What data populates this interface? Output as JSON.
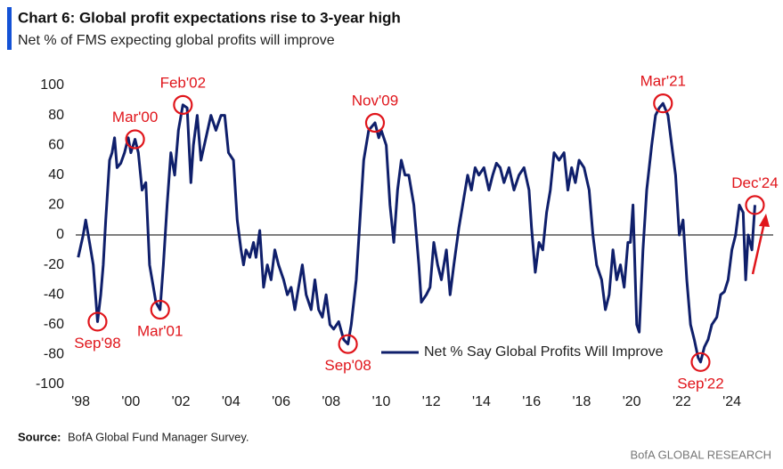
{
  "chart_data": {
    "type": "line",
    "title": "Chart 6: Global profit expectations rise to 3-year high",
    "subtitle": "Net % of FMS expecting global profits will improve",
    "source_label": "Source:",
    "source": "BofA Global Fund Manager Survey.",
    "brand": "BofA GLOBAL RESEARCH",
    "x": [
      1997.9,
      1998.1,
      1998.2,
      1998.35,
      1998.5,
      1998.67,
      1998.8,
      1998.9,
      1999.0,
      1999.15,
      1999.25,
      1999.35,
      1999.45,
      1999.6,
      1999.75,
      1999.9,
      2000.0,
      2000.17,
      2000.3,
      2000.45,
      2000.6,
      2000.75,
      2000.9,
      2001.0,
      2001.17,
      2001.3,
      2001.45,
      2001.6,
      2001.75,
      2001.9,
      2002.08,
      2002.25,
      2002.4,
      2002.5,
      2002.65,
      2002.8,
      2003.0,
      2003.2,
      2003.4,
      2003.6,
      2003.75,
      2003.9,
      2004.1,
      2004.25,
      2004.4,
      2004.5,
      2004.6,
      2004.75,
      2004.9,
      2005.0,
      2005.15,
      2005.3,
      2005.45,
      2005.6,
      2005.75,
      2005.9,
      2006.1,
      2006.25,
      2006.4,
      2006.55,
      2006.7,
      2006.85,
      2007.0,
      2007.2,
      2007.35,
      2007.5,
      2007.65,
      2007.8,
      2007.95,
      2008.1,
      2008.3,
      2008.5,
      2008.67,
      2008.8,
      2009.0,
      2009.15,
      2009.3,
      2009.5,
      2009.75,
      2009.9,
      2010.0,
      2010.2,
      2010.35,
      2010.5,
      2010.65,
      2010.8,
      2010.95,
      2011.1,
      2011.3,
      2011.5,
      2011.6,
      2011.8,
      2011.95,
      2012.1,
      2012.25,
      2012.4,
      2012.6,
      2012.75,
      2012.9,
      2013.1,
      2013.3,
      2013.45,
      2013.6,
      2013.75,
      2013.9,
      2014.1,
      2014.3,
      2014.45,
      2014.6,
      2014.75,
      2014.9,
      2015.1,
      2015.3,
      2015.5,
      2015.7,
      2015.9,
      2016.0,
      2016.15,
      2016.3,
      2016.45,
      2016.6,
      2016.75,
      2016.9,
      2017.1,
      2017.3,
      2017.45,
      2017.6,
      2017.75,
      2017.9,
      2018.1,
      2018.3,
      2018.45,
      2018.6,
      2018.8,
      2018.95,
      2019.1,
      2019.25,
      2019.4,
      2019.55,
      2019.7,
      2019.85,
      2019.95,
      2020.05,
      2020.2,
      2020.3,
      2020.45,
      2020.6,
      2020.8,
      2020.95,
      2021.1,
      2021.25,
      2021.45,
      2021.6,
      2021.75,
      2021.9,
      2022.05,
      2022.2,
      2022.35,
      2022.5,
      2022.65,
      2022.75,
      2022.9,
      2023.05,
      2023.2,
      2023.4,
      2023.55,
      2023.7,
      2023.85,
      2024.0,
      2024.15,
      2024.3,
      2024.45,
      2024.55,
      2024.65,
      2024.8,
      2024.92
    ],
    "series": [
      {
        "name": "Net % Say Global Profits Will Improve",
        "color": "#0f1f6b",
        "values": [
          -15,
          0,
          10,
          -5,
          -20,
          -58,
          -40,
          -20,
          10,
          50,
          55,
          65,
          45,
          48,
          55,
          65,
          55,
          64,
          55,
          30,
          35,
          -20,
          -35,
          -45,
          -50,
          -20,
          20,
          55,
          40,
          70,
          87,
          85,
          35,
          60,
          80,
          50,
          65,
          80,
          70,
          80,
          80,
          55,
          50,
          10,
          -10,
          -20,
          -10,
          -15,
          -5,
          -15,
          3,
          -35,
          -20,
          -30,
          -10,
          -20,
          -30,
          -40,
          -35,
          -50,
          -35,
          -20,
          -40,
          -50,
          -30,
          -50,
          -55,
          -40,
          -60,
          -63,
          -58,
          -70,
          -73,
          -60,
          -30,
          10,
          50,
          70,
          75,
          65,
          70,
          60,
          20,
          -5,
          30,
          50,
          40,
          40,
          20,
          -20,
          -45,
          -40,
          -35,
          -5,
          -20,
          -30,
          -10,
          -40,
          -20,
          5,
          25,
          40,
          30,
          45,
          40,
          45,
          30,
          40,
          48,
          45,
          35,
          45,
          30,
          40,
          45,
          30,
          5,
          -25,
          -5,
          -10,
          15,
          30,
          55,
          50,
          55,
          30,
          45,
          35,
          50,
          45,
          30,
          0,
          -20,
          -30,
          -50,
          -40,
          -10,
          -30,
          -20,
          -35,
          -5,
          -5,
          20,
          -60,
          -65,
          -10,
          30,
          60,
          80,
          85,
          88,
          80,
          60,
          40,
          0,
          10,
          -30,
          -60,
          -70,
          -82,
          -85,
          -75,
          -70,
          -60,
          -55,
          -40,
          -38,
          -30,
          -10,
          0,
          20,
          15,
          -30,
          0,
          -10,
          20
        ]
      }
    ],
    "xlim": [
      1997.8,
      2025.65
    ],
    "xticks": [
      {
        "value": 1998,
        "label": "'98"
      },
      {
        "value": 2000,
        "label": "'00"
      },
      {
        "value": 2002,
        "label": "'02"
      },
      {
        "value": 2004,
        "label": "'04"
      },
      {
        "value": 2006,
        "label": "'06"
      },
      {
        "value": 2008,
        "label": "'08"
      },
      {
        "value": 2010,
        "label": "'10"
      },
      {
        "value": 2012,
        "label": "'12"
      },
      {
        "value": 2014,
        "label": "'14"
      },
      {
        "value": 2016,
        "label": "'16"
      },
      {
        "value": 2018,
        "label": "'18"
      },
      {
        "value": 2020,
        "label": "'20"
      },
      {
        "value": 2022,
        "label": "'22"
      },
      {
        "value": 2024,
        "label": "'24"
      }
    ],
    "ylim": [
      -100,
      100
    ],
    "yticks": [
      -100,
      -80,
      -60,
      -40,
      -20,
      0,
      20,
      40,
      60,
      80,
      100
    ],
    "annotations": [
      {
        "text": "Sep'98",
        "x": 1998.67,
        "y": -58
      },
      {
        "text": "Mar'00",
        "x": 2000.17,
        "y": 64
      },
      {
        "text": "Mar'01",
        "x": 2001.17,
        "y": -50
      },
      {
        "text": "Feb'02",
        "x": 2002.08,
        "y": 87
      },
      {
        "text": "Sep'08",
        "x": 2008.67,
        "y": -73
      },
      {
        "text": "Nov'09",
        "x": 2009.75,
        "y": 75
      },
      {
        "text": "Mar'21",
        "x": 2021.25,
        "y": 88
      },
      {
        "text": "Sep'22",
        "x": 2022.75,
        "y": -85
      },
      {
        "text": "Dec'24",
        "x": 2024.92,
        "y": 20
      }
    ]
  }
}
